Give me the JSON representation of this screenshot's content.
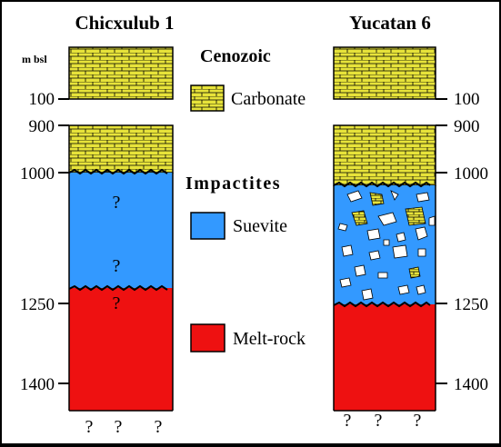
{
  "colors": {
    "carbonate": "#e7e33a",
    "suevite": "#3399ff",
    "melt_rock": "#ee1111",
    "outline": "#000000"
  },
  "columns": [
    {
      "title": "Chicxulub 1"
    },
    {
      "title": "Yucatan 6"
    }
  ],
  "depth_unit": "m bsl",
  "depth_ticks_left": [
    "100",
    "900",
    "1000",
    "1250",
    "1400"
  ],
  "depth_ticks_right": [
    "100",
    "900",
    "1000",
    "1250",
    "1400"
  ],
  "legend": {
    "cenozoic_heading": "Cenozoic",
    "carbonate_label": "Carbonate",
    "impactites_heading": "Impactites",
    "suevite_label": "Suevite",
    "melt_rock_label": "Melt-rock"
  },
  "question_mark": "?"
}
